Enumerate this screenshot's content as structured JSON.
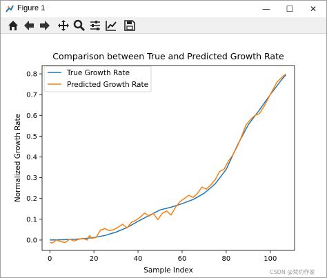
{
  "window": {
    "title": "Figure 1"
  },
  "titlebar_buttons": {
    "minimize": "—",
    "maximize": "☐",
    "close": "✕"
  },
  "toolbar": {
    "tools": [
      {
        "name": "home-icon"
      },
      {
        "name": "back-arrow-icon"
      },
      {
        "name": "forward-arrow-icon"
      },
      {
        "name": "pan-icon"
      },
      {
        "name": "zoom-icon"
      },
      {
        "name": "subplots-config-icon"
      },
      {
        "name": "axes-edit-icon"
      },
      {
        "name": "save-icon"
      }
    ]
  },
  "watermark": "CSDN @梵约作家",
  "chart_data": {
    "type": "line",
    "title": "Comparison between True and Predicted Growth Rate",
    "xlabel": "Sample Index",
    "ylabel": "Normalized Growth Rate",
    "xlim": [
      -3.5,
      111
    ],
    "ylim": [
      -0.05,
      0.84
    ],
    "xticks": [
      0,
      20,
      40,
      60,
      80,
      100
    ],
    "yticks": [
      0.0,
      0.1,
      0.2,
      0.3,
      0.4,
      0.5,
      0.6,
      0.7,
      0.8
    ],
    "ytick_labels": [
      "0.0",
      "0.1",
      "0.2",
      "0.3",
      "0.4",
      "0.5",
      "0.6",
      "0.7",
      "0.8"
    ],
    "legend_position": "top-left",
    "grid": false,
    "series": [
      {
        "name": "True Growth Rate",
        "color": "#1f77b4",
        "x": [
          0,
          5,
          10,
          15,
          20,
          25,
          30,
          35,
          40,
          45,
          50,
          55,
          60,
          65,
          70,
          75,
          80,
          85,
          90,
          95,
          100,
          105,
          107
        ],
        "y": [
          0.0,
          0.001,
          0.003,
          0.006,
          0.012,
          0.022,
          0.038,
          0.06,
          0.09,
          0.118,
          0.145,
          0.158,
          0.175,
          0.195,
          0.225,
          0.27,
          0.34,
          0.455,
          0.555,
          0.625,
          0.7,
          0.77,
          0.795
        ]
      },
      {
        "name": "Predicted Growth Rate",
        "color": "#ff7f0e",
        "x": [
          0,
          1,
          3,
          5,
          7,
          9,
          11,
          13,
          15,
          17,
          18,
          19,
          21,
          23,
          25,
          27,
          29,
          31,
          33,
          35,
          37,
          39,
          41,
          43,
          45,
          47,
          49,
          51,
          53,
          55,
          57,
          59,
          61,
          63,
          65,
          67,
          69,
          71,
          73,
          75,
          77,
          79,
          81,
          83,
          85,
          87,
          89,
          91,
          93,
          95,
          97,
          99,
          101,
          103,
          105,
          107
        ],
        "y": [
          -0.01,
          -0.015,
          0.0,
          -0.008,
          -0.012,
          0.004,
          -0.005,
          0.003,
          0.008,
          0.0,
          0.022,
          0.008,
          0.012,
          0.048,
          0.055,
          0.045,
          0.05,
          0.062,
          0.076,
          0.058,
          0.085,
          0.095,
          0.11,
          0.13,
          0.115,
          0.128,
          0.098,
          0.128,
          0.14,
          0.12,
          0.158,
          0.185,
          0.2,
          0.215,
          0.205,
          0.225,
          0.255,
          0.245,
          0.265,
          0.29,
          0.33,
          0.34,
          0.38,
          0.41,
          0.45,
          0.5,
          0.555,
          0.58,
          0.6,
          0.608,
          0.64,
          0.68,
          0.72,
          0.76,
          0.78,
          0.8
        ]
      }
    ]
  }
}
